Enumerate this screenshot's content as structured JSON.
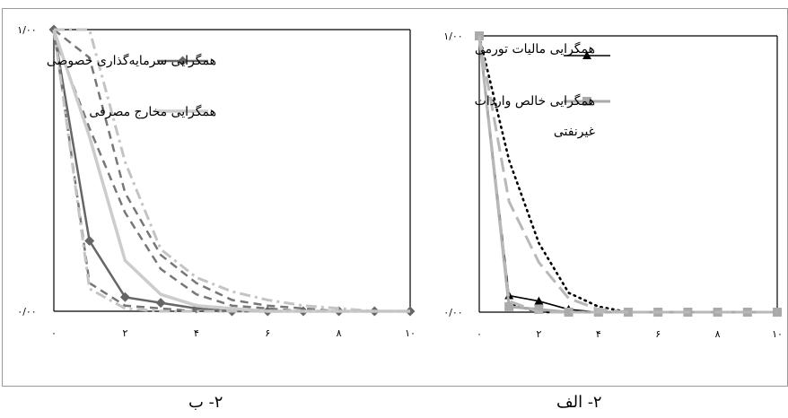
{
  "page_title": "",
  "chart_data": [
    {
      "id": "b",
      "type": "line",
      "caption": "۲- ب",
      "x": [
        0,
        1,
        2,
        3,
        4,
        5,
        6,
        7,
        8,
        9,
        10
      ],
      "xticks": [
        "۰",
        "۲",
        "۴",
        "۶",
        "۸",
        "۱۰"
      ],
      "xtick_values": [
        0,
        2,
        4,
        6,
        8,
        10
      ],
      "yticks": [
        "۰/۰۰",
        "۱/۰۰"
      ],
      "ylim": [
        0,
        1
      ],
      "xlim": [
        0,
        10
      ],
      "legend": [
        {
          "label": "همگرایی سرمایه‌گذاری خصوصی"
        },
        {
          "label": "همگرایی مخارج مصرفی"
        }
      ],
      "series": [
        {
          "name": "همگرایی سرمایه‌گذاری خصوصی",
          "color": "#666666",
          "style": "solid-diamond",
          "values": [
            1.0,
            0.25,
            0.05,
            0.03,
            0.01,
            0.0,
            0.0,
            0.0,
            0.0,
            0.0,
            0.0
          ]
        },
        {
          "color": "#777777",
          "style": "dash",
          "values": [
            1.0,
            0.1,
            0.02,
            0.01,
            0.0,
            0.0,
            0.0,
            0.0,
            0.0,
            0.0,
            0.0
          ]
        },
        {
          "color": "#777777",
          "style": "dash",
          "values": [
            0.98,
            0.65,
            0.35,
            0.15,
            0.06,
            0.02,
            0.01,
            0.0,
            0.0,
            0.0,
            0.0
          ]
        },
        {
          "color": "#777777",
          "style": "dash",
          "values": [
            1.0,
            0.9,
            0.42,
            0.2,
            0.1,
            0.04,
            0.02,
            0.01,
            0.0,
            0.0,
            0.0
          ]
        },
        {
          "name": "همگرایی مخارج مصرفی",
          "color": "#cccccc",
          "style": "solid-thick",
          "values": [
            1.0,
            0.62,
            0.18,
            0.06,
            0.02,
            0.01,
            0.0,
            0.0,
            0.0,
            0.0,
            0.0
          ]
        },
        {
          "color": "#c4c4c4",
          "style": "dashdot",
          "values": [
            1.0,
            0.08,
            0.01,
            0.0,
            0.0,
            0.0,
            0.0,
            0.0,
            0.0,
            0.0,
            0.0
          ]
        },
        {
          "color": "#c4c4c4",
          "style": "dashdot",
          "values": [
            1.0,
            1.0,
            0.53,
            0.22,
            0.12,
            0.07,
            0.04,
            0.02,
            0.01,
            0.0,
            0.0
          ]
        }
      ]
    },
    {
      "id": "a",
      "type": "line",
      "caption": "۲- الف",
      "x": [
        0,
        1,
        2,
        3,
        4,
        5,
        6,
        7,
        8,
        9,
        10
      ],
      "xticks": [
        "۰",
        "۲",
        "۴",
        "۶",
        "۸",
        "۱۰"
      ],
      "xtick_values": [
        0,
        2,
        4,
        6,
        8,
        10
      ],
      "yticks": [
        "۰/۰۰",
        "۱/۰۰"
      ],
      "ylim": [
        0,
        1
      ],
      "xlim": [
        0,
        10
      ],
      "legend": [
        {
          "label": "همگرایی مالیات تورمی"
        },
        {
          "label": "همگرایی خالص واردات"
        },
        {
          "label": "غیرنفتی"
        }
      ],
      "series": [
        {
          "name": "همگرایی مالیات تورمی",
          "color": "#000000",
          "style": "solid-triangle",
          "values": [
            1.0,
            0.06,
            0.04,
            0.01,
            0.0,
            0.0,
            0.0,
            0.0,
            0.0,
            0.0,
            0.0
          ]
        },
        {
          "color": "#000000",
          "style": "dotted",
          "values": [
            1.0,
            0.55,
            0.25,
            0.07,
            0.02,
            0.0,
            0.0,
            0.0,
            0.0,
            0.0,
            0.0
          ]
        },
        {
          "color": "#000000",
          "style": "dotted",
          "values": [
            1.0,
            0.03,
            0.0,
            0.0,
            0.0,
            0.0,
            0.0,
            0.0,
            0.0,
            0.0,
            0.0
          ]
        },
        {
          "name": "همگرایی خالص واردات غیرنفتی",
          "color": "#aaaaaa",
          "style": "solid-square",
          "values": [
            1.0,
            0.02,
            0.01,
            0.0,
            0.0,
            0.0,
            0.0,
            0.0,
            0.0,
            0.0,
            0.0
          ]
        },
        {
          "color": "#b8b8b8",
          "style": "longdash",
          "values": [
            1.0,
            0.4,
            0.18,
            0.05,
            0.01,
            0.0,
            0.0,
            0.0,
            0.0,
            0.0,
            0.0
          ]
        },
        {
          "color": "#b8b8b8",
          "style": "longdash",
          "values": [
            1.0,
            0.04,
            0.0,
            0.0,
            0.0,
            0.0,
            0.0,
            0.0,
            0.0,
            0.0,
            0.0
          ]
        }
      ]
    }
  ]
}
